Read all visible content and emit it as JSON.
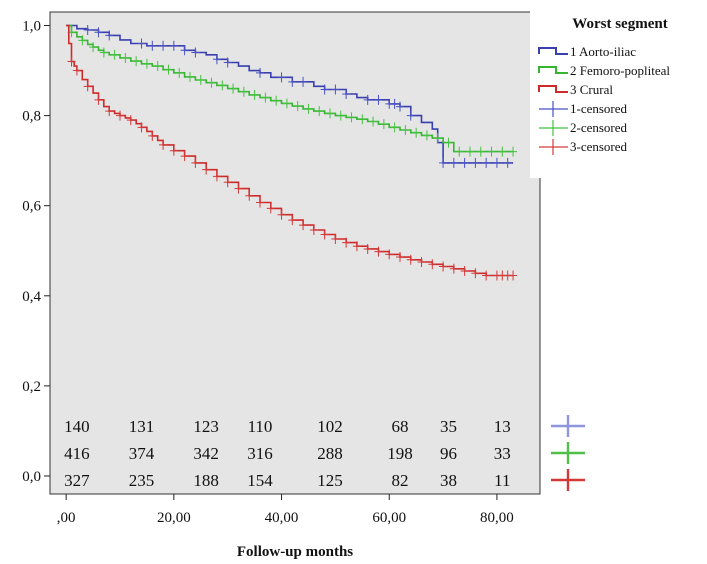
{
  "chart_data": {
    "type": "line",
    "xlabel": "Follow-up months",
    "ylabel": "",
    "xlim": [
      -3,
      88
    ],
    "ylim": [
      -0.04,
      1.03
    ],
    "x_ticks": [
      {
        "value": 0,
        "label": ",00"
      },
      {
        "value": 20,
        "label": "20,00"
      },
      {
        "value": 40,
        "label": "40,00"
      },
      {
        "value": 60,
        "label": "60,00"
      },
      {
        "value": 80,
        "label": "80,00"
      }
    ],
    "y_ticks": [
      {
        "value": 0.0,
        "label": "0,0"
      },
      {
        "value": 0.2,
        "label": "0,2"
      },
      {
        "value": 0.4,
        "label": "0,4"
      },
      {
        "value": 0.6,
        "label": "0,6"
      },
      {
        "value": 0.8,
        "label": "0,8"
      },
      {
        "value": 1.0,
        "label": "1,0"
      }
    ],
    "legend": {
      "title": "Worst segment",
      "position": "right",
      "entries": [
        "1 Aorto-iliac",
        "2 Femoro-popliteal",
        "3 Crural",
        "1-censored",
        "2-censored",
        "3-censored"
      ]
    },
    "series": [
      {
        "key": "aorto",
        "color": "#3a3fb0",
        "censor_color": "#4a52c4",
        "risk_color": "#8f96de",
        "x": [
          0,
          1,
          2,
          4,
          6,
          8,
          10,
          12,
          15,
          22,
          24,
          26,
          28,
          30,
          32,
          34,
          36,
          38,
          42,
          46,
          48,
          52,
          54,
          56,
          60,
          62,
          64,
          66,
          68,
          69,
          70,
          83
        ],
        "y": [
          1.0,
          1.0,
          0.993,
          0.99,
          0.985,
          0.978,
          0.968,
          0.96,
          0.955,
          0.945,
          0.94,
          0.935,
          0.925,
          0.918,
          0.91,
          0.9,
          0.895,
          0.885,
          0.875,
          0.865,
          0.858,
          0.848,
          0.84,
          0.835,
          0.826,
          0.82,
          0.8,
          0.785,
          0.77,
          0.74,
          0.695,
          0.695
        ],
        "censored_x": [
          4,
          6,
          8,
          14,
          16,
          18,
          20,
          22,
          24,
          28,
          30,
          36,
          40,
          42,
          44,
          48,
          50,
          52,
          56,
          58,
          60,
          61,
          62,
          64,
          70,
          72,
          74,
          76,
          78,
          80,
          82
        ]
      },
      {
        "key": "femoro",
        "color": "#36b531",
        "censor_color": "#45c240",
        "risk_color": "#4fbf4a",
        "x": [
          0,
          1,
          2,
          3,
          4,
          5,
          6,
          7,
          8,
          10,
          12,
          14,
          16,
          18,
          20,
          22,
          24,
          26,
          28,
          30,
          32,
          34,
          36,
          38,
          40,
          42,
          44,
          46,
          48,
          50,
          52,
          54,
          56,
          58,
          60,
          62,
          64,
          66,
          68,
          70,
          72,
          83
        ],
        "y": [
          1.0,
          0.985,
          0.975,
          0.967,
          0.958,
          0.952,
          0.945,
          0.94,
          0.935,
          0.928,
          0.921,
          0.915,
          0.91,
          0.902,
          0.895,
          0.886,
          0.879,
          0.873,
          0.867,
          0.86,
          0.853,
          0.846,
          0.84,
          0.833,
          0.827,
          0.821,
          0.815,
          0.81,
          0.805,
          0.8,
          0.796,
          0.792,
          0.787,
          0.781,
          0.774,
          0.768,
          0.762,
          0.756,
          0.75,
          0.74,
          0.72,
          0.72
        ],
        "censored_x": [
          1,
          3,
          5,
          7,
          9,
          11,
          13,
          15,
          17,
          19,
          21,
          23,
          25,
          27,
          29,
          31,
          33,
          35,
          37,
          39,
          41,
          43,
          45,
          47,
          49,
          51,
          53,
          55,
          57,
          59,
          61,
          63,
          65,
          67,
          69,
          71,
          73,
          75,
          77,
          79,
          81,
          83
        ]
      },
      {
        "key": "crural",
        "color": "#cf2a2a",
        "censor_color": "#d43a3a",
        "risk_color": "#d23a3a",
        "x": [
          0,
          0.5,
          1,
          1.5,
          2,
          3,
          4,
          5,
          6,
          7,
          8,
          9,
          10,
          11,
          12,
          13,
          14,
          15,
          16,
          17,
          18,
          20,
          22,
          24,
          26,
          28,
          30,
          32,
          34,
          36,
          38,
          40,
          42,
          44,
          46,
          48,
          50,
          52,
          54,
          56,
          58,
          60,
          62,
          64,
          66,
          68,
          70,
          72,
          74,
          76,
          78,
          83
        ],
        "y": [
          1.0,
          0.96,
          0.92,
          0.91,
          0.9,
          0.88,
          0.865,
          0.85,
          0.835,
          0.82,
          0.81,
          0.805,
          0.8,
          0.795,
          0.79,
          0.782,
          0.774,
          0.765,
          0.755,
          0.745,
          0.735,
          0.722,
          0.71,
          0.695,
          0.68,
          0.665,
          0.652,
          0.638,
          0.622,
          0.607,
          0.594,
          0.58,
          0.568,
          0.557,
          0.546,
          0.536,
          0.526,
          0.518,
          0.51,
          0.504,
          0.498,
          0.492,
          0.486,
          0.48,
          0.475,
          0.47,
          0.465,
          0.46,
          0.455,
          0.45,
          0.445,
          0.445
        ],
        "censored_x": [
          1,
          2,
          4,
          6,
          8,
          10,
          12,
          14,
          16,
          18,
          20,
          22,
          24,
          26,
          28,
          30,
          32,
          34,
          36,
          38,
          40,
          42,
          44,
          46,
          48,
          50,
          52,
          54,
          56,
          58,
          60,
          62,
          64,
          66,
          68,
          70,
          72,
          74,
          76,
          78,
          80,
          81,
          82,
          83
        ]
      }
    ],
    "at_risk": {
      "x": [
        2,
        14,
        26,
        36,
        49,
        62,
        71,
        81
      ],
      "rows": [
        {
          "key": "aorto",
          "values": [
            "140",
            "131",
            "123",
            "110",
            "102",
            "68",
            "35",
            "13"
          ]
        },
        {
          "key": "femoro",
          "values": [
            "416",
            "374",
            "342",
            "316",
            "288",
            "198",
            "96",
            "33"
          ]
        },
        {
          "key": "crural",
          "values": [
            "327",
            "235",
            "188",
            "154",
            "125",
            "82",
            "38",
            "11"
          ]
        }
      ]
    }
  }
}
